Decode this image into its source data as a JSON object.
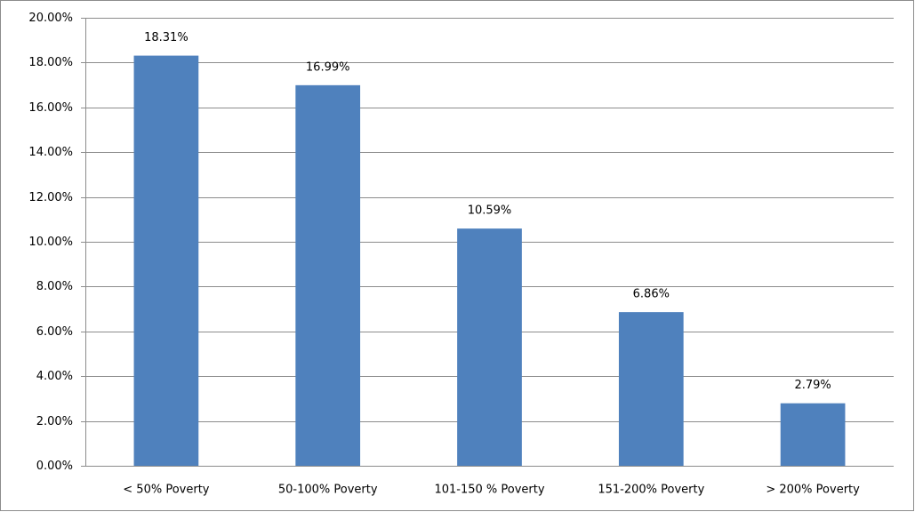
{
  "chart_data": {
    "type": "bar",
    "categories": [
      "< 50% Poverty",
      "50-100% Poverty",
      "101-150 % Poverty",
      "151-200% Poverty",
      "> 200% Poverty"
    ],
    "values": [
      18.31,
      16.99,
      10.59,
      6.86,
      2.79
    ],
    "value_labels": [
      "18.31%",
      "16.99%",
      "10.59%",
      "6.86%",
      "2.79%"
    ],
    "color": "#4f81bd",
    "ylim": [
      0,
      20
    ],
    "yticks": [
      {
        "value": 0,
        "label": "0.00%"
      },
      {
        "value": 2,
        "label": "2.00%"
      },
      {
        "value": 4,
        "label": "4.00%"
      },
      {
        "value": 6,
        "label": "6.00%"
      },
      {
        "value": 8,
        "label": "8.00%"
      },
      {
        "value": 10,
        "label": "10.00%"
      },
      {
        "value": 12,
        "label": "12.00%"
      },
      {
        "value": 14,
        "label": "14.00%"
      },
      {
        "value": 16,
        "label": "16.00%"
      },
      {
        "value": 18,
        "label": "18.00%"
      },
      {
        "value": 20,
        "label": "20.00%"
      }
    ],
    "grid": true
  }
}
